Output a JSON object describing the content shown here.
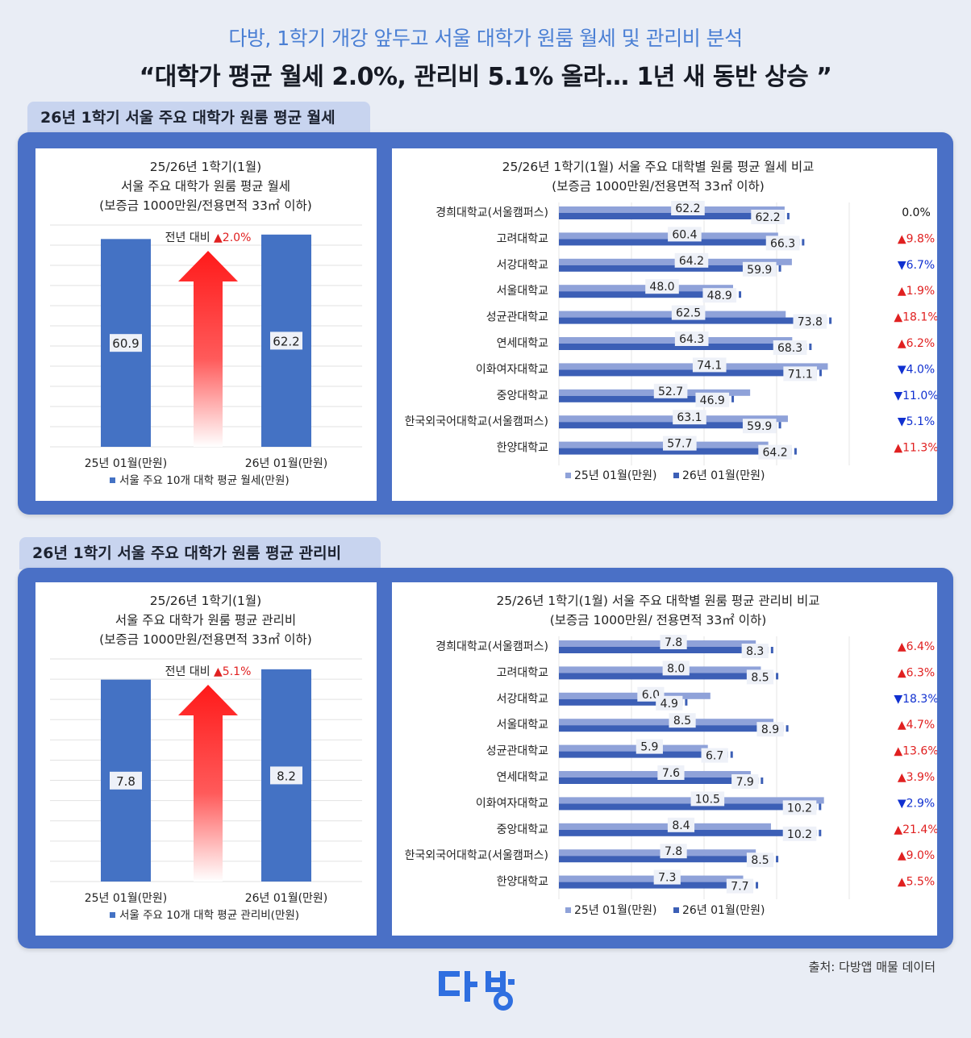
{
  "header": {
    "subtitle": "다방, 1학기 개강 앞두고 서울 대학가 원룸 월세 및 관리비 분석",
    "headline": "“대학가 평균 월세 2.0%, 관리비 5.1% 올라… 1년 새 동반 상승 ”"
  },
  "sections": {
    "rent_tab": "26년 1학기 서울 주요 대학가 원룸 평균 월세",
    "fee_tab": "26년 1학기 서울 주요 대학가 원룸 평균 관리비"
  },
  "footer": {
    "source": "출처: 다방앱 매물 데이터",
    "logo_text": "다방"
  },
  "colors": {
    "bar_2025": "#8fa2d9",
    "bar_2026": "#3c5fb6",
    "summary_bar": "#4472c4",
    "up": "#e02020",
    "down": "#1030d0",
    "frame": "#4a70c6"
  },
  "chart_data": [
    {
      "type": "bar",
      "id": "rent_summary",
      "title_lines": [
        "25/26년 1학기(1월)",
        "서울 주요 대학가 원룸 평균 월세",
        "(보증금 1000만원/전용면적 33㎡ 이하)"
      ],
      "categories": [
        "25년 01월(만원)",
        "26년 01월(만원)"
      ],
      "series": [
        {
          "name": "서울 주요 10개 대학 평균 월세(만원)",
          "values": [
            60.9,
            62.2
          ]
        }
      ],
      "annotation": {
        "label": "전년 대비",
        "change": "▲2.0%"
      },
      "ylim": [
        0,
        65
      ],
      "grid": true,
      "legend": "bottom"
    },
    {
      "type": "bar",
      "id": "rent_by_univ",
      "orientation": "horizontal",
      "title_lines": [
        "25/26년 1학기(1월) 서울 주요 대학별 원룸 평균 월세 비교",
        "(보증금 1000만원/전용면적 33㎡ 이하)"
      ],
      "categories": [
        "경희대학교(서울캠퍼스)",
        "고려대학교",
        "서강대학교",
        "서울대학교",
        "성균관대학교",
        "연세대학교",
        "이화여자대학교",
        "중앙대학교",
        "한국외국어대학교(서울캠퍼스)",
        "한양대학교"
      ],
      "series": [
        {
          "name": "25년 01월(만원)",
          "values": [
            62.2,
            60.4,
            64.2,
            48.0,
            62.5,
            64.3,
            74.1,
            52.7,
            63.1,
            57.7
          ]
        },
        {
          "name": "26년 01월(만원)",
          "values": [
            62.2,
            66.3,
            59.9,
            48.9,
            73.8,
            68.3,
            71.1,
            46.9,
            59.9,
            64.2
          ]
        }
      ],
      "value_labels_2025": [
        "62.2",
        "60.4",
        "64.2",
        "48.0",
        "62.5",
        "64.3",
        "74.1",
        "52.7",
        "63.1",
        "57.7"
      ],
      "value_labels_2026": [
        "62.2",
        "66.3",
        "59.9",
        "48.9",
        "73.8",
        "68.3",
        "71.1",
        "46.9",
        "59.9",
        "64.2"
      ],
      "changes": [
        "0.0%",
        "▲9.8%",
        "▼6.7%",
        "▲1.9%",
        "▲18.1%",
        "▲6.2%",
        "▼4.0%",
        "▼11.0%",
        "▼5.1%",
        "▲11.3%"
      ],
      "xlim": [
        0,
        80
      ],
      "legend": "bottom"
    },
    {
      "type": "bar",
      "id": "fee_summary",
      "title_lines": [
        "25/26년 1학기(1월)",
        "서울 주요 대학가 원룸 평균 관리비",
        "(보증금 1000만원/전용면적 33㎡ 이하)"
      ],
      "categories": [
        "25년 01월(만원)",
        "26년 01월(만원)"
      ],
      "series": [
        {
          "name": "서울 주요 10개 대학 평균 관리비(만원)",
          "values": [
            7.8,
            8.2
          ]
        }
      ],
      "annotation": {
        "label": "전년 대비",
        "change": "▲5.1%"
      },
      "ylim": [
        0,
        8.6
      ],
      "grid": true,
      "legend": "bottom"
    },
    {
      "type": "bar",
      "id": "fee_by_univ",
      "orientation": "horizontal",
      "title_lines": [
        "25/26년 1학기(1월) 서울 주요 대학별 원룸 평균 관리비 비교",
        "(보증금 1000만원/ 전용면적 33㎡ 이하)"
      ],
      "categories": [
        "경희대학교(서울캠퍼스)",
        "고려대학교",
        "서강대학교",
        "서울대학교",
        "성균관대학교",
        "연세대학교",
        "이화여자대학교",
        "중앙대학교",
        "한국외국어대학교(서울캠퍼스)",
        "한양대학교"
      ],
      "series": [
        {
          "name": "25년 01월(만원)",
          "values": [
            7.8,
            8.0,
            6.0,
            8.5,
            5.9,
            7.6,
            10.5,
            8.4,
            7.8,
            7.3
          ]
        },
        {
          "name": "26년 01월(만원)",
          "values": [
            8.3,
            8.5,
            4.9,
            8.9,
            6.7,
            7.9,
            10.2,
            10.2,
            8.5,
            7.7
          ]
        }
      ],
      "value_labels_2025": [
        "7.8",
        "8.0",
        "6.0",
        "8.5",
        "5.9",
        "7.6",
        "10.5",
        "8.4",
        "7.8",
        "7.3"
      ],
      "value_labels_2026": [
        "8.3",
        "8.5",
        "4.9",
        "8.9",
        "6.7",
        "7.9",
        "10.2",
        "10.2",
        "8.5",
        "7.7"
      ],
      "changes": [
        "▲6.4%",
        "▲6.3%",
        "▼18.3%",
        "▲4.7%",
        "▲13.6%",
        "▲3.9%",
        "▼2.9%",
        "▲21.4%",
        "▲9.0%",
        "▲5.5%"
      ],
      "xlim": [
        0,
        11.5
      ],
      "legend": "bottom"
    }
  ]
}
